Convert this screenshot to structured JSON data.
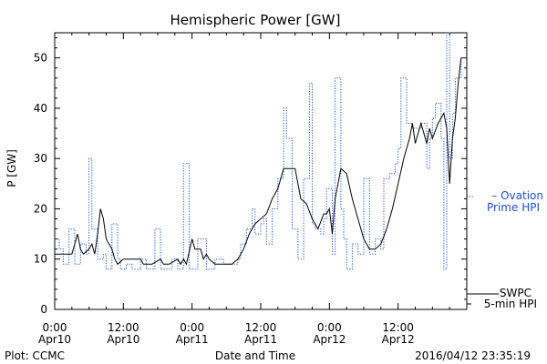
{
  "chart_data": {
    "type": "line",
    "title": "Hemispheric Power [GW]",
    "ylabel": "P [GW]",
    "xlabel": "Date and Time",
    "xlim": [
      0,
      72
    ],
    "ylim": [
      0,
      55
    ],
    "y_ticks": [
      0,
      10,
      20,
      30,
      40,
      50
    ],
    "x_ticks": [
      {
        "hour": 0,
        "line1": "0:00",
        "line2": "Apr10"
      },
      {
        "hour": 12,
        "line1": "12:00",
        "line2": "Apr10"
      },
      {
        "hour": 24,
        "line1": "0:00",
        "line2": "Apr11"
      },
      {
        "hour": 36,
        "line1": "12:00",
        "line2": "Apr11"
      },
      {
        "hour": 48,
        "line1": "0:00",
        "line2": "Apr12"
      },
      {
        "hour": 60,
        "line1": "12:00",
        "line2": "Apr12"
      }
    ],
    "series": [
      {
        "name": "Ovation Prime HPI",
        "color": "#1f4fd1",
        "style": "dotted-step",
        "points": [
          [
            0,
            14
          ],
          [
            0.8,
            12
          ],
          [
            1.5,
            9
          ],
          [
            2.5,
            16
          ],
          [
            3.5,
            9
          ],
          [
            4.5,
            13
          ],
          [
            5.5,
            11
          ],
          [
            6,
            30
          ],
          [
            6.5,
            16
          ],
          [
            7.5,
            10
          ],
          [
            8.5,
            11
          ],
          [
            9,
            8
          ],
          [
            10,
            17
          ],
          [
            11,
            10
          ],
          [
            11.5,
            8
          ],
          [
            12.5,
            9
          ],
          [
            13.5,
            8
          ],
          [
            15,
            10
          ],
          [
            16,
            8
          ],
          [
            17.5,
            16
          ],
          [
            18.5,
            8
          ],
          [
            20.5,
            10
          ],
          [
            21.5,
            8
          ],
          [
            22.5,
            29
          ],
          [
            23.5,
            8
          ],
          [
            25,
            14
          ],
          [
            26.5,
            8
          ],
          [
            28,
            10
          ],
          [
            29.5,
            9
          ],
          [
            31,
            9
          ],
          [
            32,
            10
          ],
          [
            32.5,
            13
          ],
          [
            33.5,
            16
          ],
          [
            34.5,
            20
          ],
          [
            35,
            15
          ],
          [
            36,
            17
          ],
          [
            36.5,
            18
          ],
          [
            37,
            13
          ],
          [
            38,
            20
          ],
          [
            39,
            26
          ],
          [
            40,
            40
          ],
          [
            40.5,
            34
          ],
          [
            41.5,
            16
          ],
          [
            42.5,
            10
          ],
          [
            43.5,
            26
          ],
          [
            44.5,
            45
          ],
          [
            45,
            17
          ],
          [
            45.5,
            16
          ],
          [
            46.5,
            15
          ],
          [
            47,
            18
          ],
          [
            47.5,
            24
          ],
          [
            48.5,
            11
          ],
          [
            49,
            46
          ],
          [
            50,
            20
          ],
          [
            50.5,
            14
          ],
          [
            51,
            8
          ],
          [
            52,
            13
          ],
          [
            53,
            11
          ],
          [
            54,
            26
          ],
          [
            55,
            11
          ],
          [
            56,
            14
          ],
          [
            57,
            12
          ],
          [
            57.5,
            26
          ],
          [
            58.5,
            27
          ],
          [
            59.5,
            29
          ],
          [
            60,
            32
          ],
          [
            60.5,
            46
          ],
          [
            61.5,
            37
          ],
          [
            62.5,
            36
          ],
          [
            64,
            37
          ],
          [
            65,
            28
          ],
          [
            65.5,
            34
          ],
          [
            66,
            38
          ],
          [
            66.5,
            41
          ],
          [
            67.5,
            34
          ],
          [
            68,
            8
          ],
          [
            68.5,
            55
          ],
          [
            69,
            30
          ],
          [
            69.5,
            39
          ],
          [
            70,
            46
          ],
          [
            71,
            50
          ]
        ]
      },
      {
        "name": "SWPC 5-min HPI",
        "color": "#000000",
        "style": "solid",
        "points": [
          [
            0,
            11
          ],
          [
            1,
            11
          ],
          [
            2,
            11
          ],
          [
            3,
            11
          ],
          [
            4,
            15
          ],
          [
            4.5,
            12
          ],
          [
            5,
            11
          ],
          [
            6,
            12
          ],
          [
            6.5,
            13
          ],
          [
            7,
            11
          ],
          [
            7.5,
            15
          ],
          [
            8,
            20
          ],
          [
            8.5,
            18
          ],
          [
            9,
            14
          ],
          [
            10,
            12
          ],
          [
            10.5,
            10
          ],
          [
            11,
            9
          ],
          [
            12,
            10
          ],
          [
            13,
            10
          ],
          [
            14,
            10
          ],
          [
            15,
            10
          ],
          [
            15.5,
            9
          ],
          [
            17,
            9
          ],
          [
            18.5,
            10
          ],
          [
            19,
            9
          ],
          [
            20,
            9
          ],
          [
            21.5,
            10
          ],
          [
            22,
            9
          ],
          [
            22.5,
            10
          ],
          [
            23,
            9
          ],
          [
            24,
            14
          ],
          [
            24.5,
            12
          ],
          [
            25.5,
            12
          ],
          [
            26,
            10
          ],
          [
            26.5,
            11
          ],
          [
            27,
            10
          ],
          [
            28,
            9
          ],
          [
            30,
            9
          ],
          [
            31,
            9
          ],
          [
            32,
            10
          ],
          [
            33,
            12
          ],
          [
            34,
            15
          ],
          [
            35,
            17
          ],
          [
            36,
            18
          ],
          [
            37,
            19
          ],
          [
            38,
            22
          ],
          [
            39,
            24
          ],
          [
            40,
            28
          ],
          [
            41,
            28
          ],
          [
            42,
            28
          ],
          [
            42.5,
            25
          ],
          [
            43,
            22
          ],
          [
            44,
            21
          ],
          [
            45,
            18
          ],
          [
            46,
            16
          ],
          [
            47,
            19
          ],
          [
            47.5,
            19
          ],
          [
            48,
            20
          ],
          [
            48.5,
            15
          ],
          [
            49,
            22
          ],
          [
            49.5,
            25
          ],
          [
            50,
            28
          ],
          [
            51,
            27
          ],
          [
            52,
            22
          ],
          [
            53,
            18
          ],
          [
            54,
            14
          ],
          [
            55,
            12
          ],
          [
            56,
            12
          ],
          [
            57,
            13
          ],
          [
            58,
            16
          ],
          [
            59,
            20
          ],
          [
            60,
            25
          ],
          [
            61,
            30
          ],
          [
            62,
            34
          ],
          [
            62.5,
            37
          ],
          [
            63,
            33
          ],
          [
            64,
            37
          ],
          [
            65,
            33
          ],
          [
            65.5,
            36
          ],
          [
            66,
            34
          ],
          [
            67,
            37
          ],
          [
            68,
            39
          ],
          [
            68.5,
            36
          ],
          [
            69,
            25
          ],
          [
            69.5,
            34
          ],
          [
            70,
            38
          ],
          [
            70.5,
            45
          ],
          [
            71,
            50
          ]
        ]
      }
    ],
    "legend": [
      {
        "line1": "– Ovation",
        "line2": "Prime HPI",
        "color": "#1f4fd1"
      },
      {
        "line1": "SWPC",
        "line2": "5-min HPI",
        "color": "#000000"
      }
    ],
    "footer": {
      "left": "Plot: CCMC",
      "right": "2016/04/12 23:35:19"
    }
  }
}
